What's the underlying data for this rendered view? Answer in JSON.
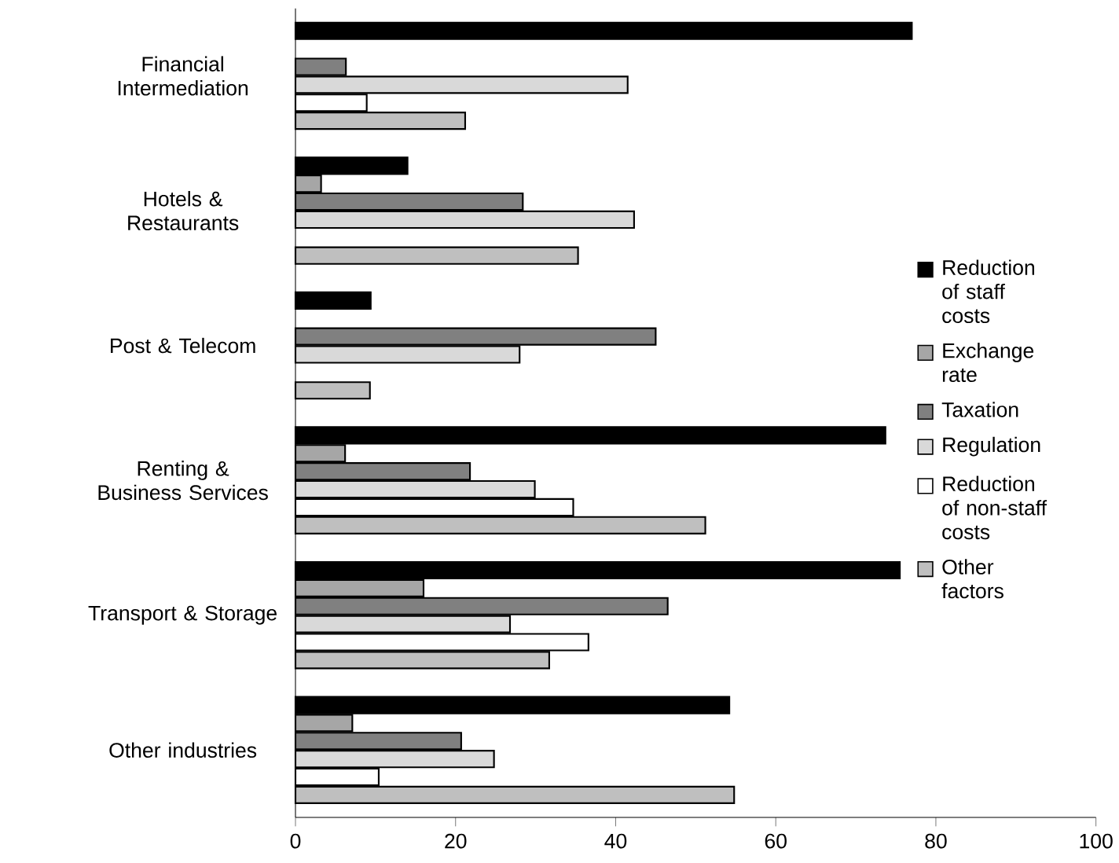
{
  "chart_data": {
    "type": "bar",
    "orientation": "horizontal",
    "categories": [
      "Financial Intermediation",
      "Hotels & Restaurants",
      "Post & Telecom",
      "Renting & Business Services",
      "Transport & Storage",
      "Other industries"
    ],
    "series": [
      {
        "name": "Reduction of staff costs",
        "color": "#000000",
        "values": [
          77,
          14,
          9.4,
          73.7,
          75.5,
          54.2
        ]
      },
      {
        "name": "Exchange rate",
        "color": "#a6a6a6",
        "values": [
          null,
          3.2,
          null,
          6.2,
          16,
          7.1
        ]
      },
      {
        "name": "Taxation",
        "color": "#808080",
        "values": [
          6.3,
          28.4,
          45,
          21.8,
          46.5,
          20.7
        ]
      },
      {
        "name": "Regulation",
        "color": "#d9d9d9",
        "values": [
          41.5,
          42.3,
          28,
          29.9,
          26.8,
          24.8
        ]
      },
      {
        "name": "Reduction of non-staff costs",
        "color": "#ffffff",
        "values": [
          8.9,
          null,
          null,
          34.7,
          36.6,
          10.4
        ]
      },
      {
        "name": "Other factors",
        "color": "#bfbfbf",
        "values": [
          21.2,
          35.3,
          9.3,
          51.2,
          31.7,
          54.8
        ]
      }
    ],
    "xlim": [
      0,
      100
    ],
    "xticks": [
      0,
      20,
      40,
      60,
      80,
      100
    ],
    "grid": false,
    "legend": "right"
  }
}
